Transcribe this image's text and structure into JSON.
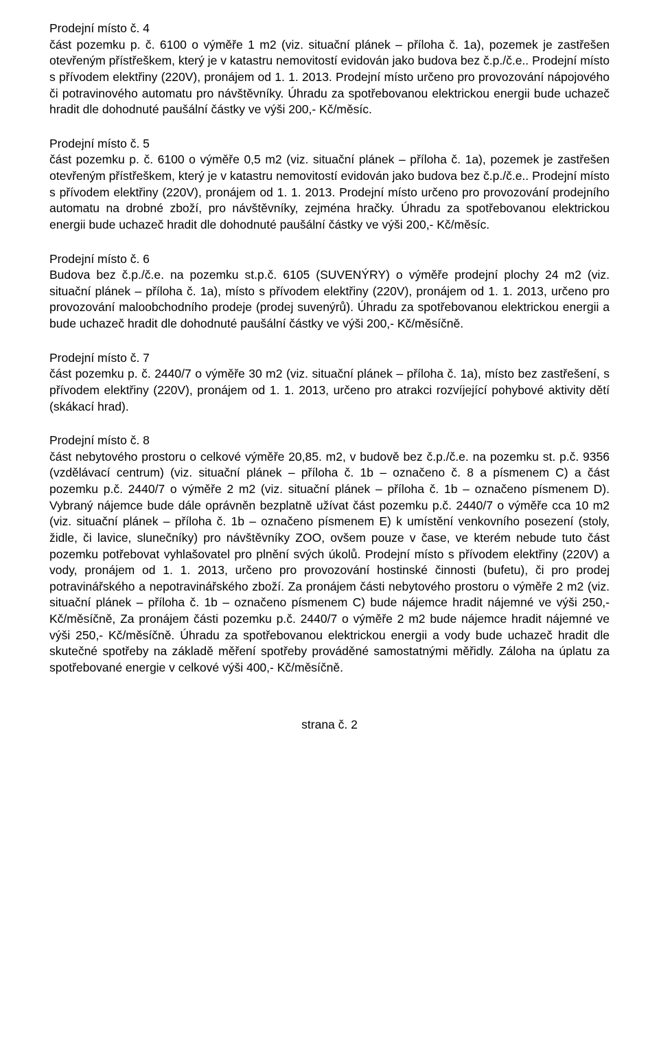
{
  "sections": [
    {
      "heading": "Prodejní místo č. 4",
      "body": "část pozemku p. č. 6100 o výměře 1 m2 (viz. situační plánek – příloha č. 1a), pozemek je zastřešen otevřeným přístřeškem, který je v katastru nemovitostí evidován jako budova bez č.p./č.e.. Prodejní místo s přívodem elektřiny (220V), pronájem od 1. 1. 2013. Prodejní místo určeno pro provozování nápojového či potravinového automatu pro návštěvníky. Úhradu za spotřebovanou elektrickou energii bude uchazeč hradit dle dohodnuté paušální částky ve výši 200,- Kč/měsíc."
    },
    {
      "heading": "Prodejní místo č. 5",
      "body": "část pozemku p. č. 6100 o výměře 0,5 m2 (viz. situační plánek – příloha č. 1a), pozemek je zastřešen otevřeným přístřeškem, který je v katastru nemovitostí evidován jako budova bez č.p./č.e.. Prodejní místo s přívodem elektřiny (220V), pronájem od 1. 1. 2013. Prodejní místo určeno pro provozování prodejního automatu na drobné zboží, pro návštěvníky, zejména hračky. Úhradu za spotřebovanou elektrickou energii bude uchazeč hradit dle dohodnuté paušální částky ve výši 200,- Kč/měsíc."
    },
    {
      "heading": "Prodejní místo č. 6",
      "body": "Budova bez č.p./č.e. na pozemku st.p.č. 6105 (SUVENÝRY) o výměře prodejní plochy 24 m2 (viz. situační plánek – příloha č. 1a), místo s přívodem elektřiny (220V), pronájem od 1. 1. 2013, určeno pro provozování maloobchodního prodeje (prodej suvenýrů). Úhradu za spotřebovanou elektrickou energii a bude uchazeč hradit dle dohodnuté paušální částky ve výši 200,- Kč/měsíčně."
    },
    {
      "heading": "Prodejní místo č. 7",
      "body": "část pozemku p. č. 2440/7 o výměře 30 m2 (viz. situační plánek – příloha č. 1a), místo bez zastřešení, s přívodem elektřiny (220V), pronájem od 1. 1. 2013, určeno pro atrakci rozvíjející pohybové aktivity dětí (skákací hrad)."
    },
    {
      "heading": "Prodejní místo č. 8",
      "body": "část nebytového prostoru o celkové výměře 20,85. m2, v budově bez č.p./č.e. na pozemku st. p.č. 9356 (vzdělávací centrum) (viz. situační plánek – příloha č. 1b – označeno č. 8 a písmenem C) a část pozemku p.č. 2440/7 o výměře 2 m2 (viz. situační plánek – příloha č. 1b – označeno písmenem D). Vybraný nájemce bude dále oprávněn bezplatně užívat část pozemku p.č. 2440/7 o výměře cca 10 m2 (viz. situační plánek – příloha č. 1b – označeno písmenem E) k umístění venkovního posezení (stoly, židle, či lavice, slunečníky) pro návštěvníky ZOO, ovšem pouze v čase, ve kterém nebude tuto část pozemku potřebovat vyhlašovatel pro plnění svých úkolů. Prodejní místo s přívodem elektřiny (220V) a vody, pronájem od 1. 1. 2013, určeno pro provozování hostinské činnosti (bufetu), či pro prodej potravinářského a nepotravinářského zboží. Za pronájem části nebytového prostoru o výměře 2 m2 (viz. situační plánek – příloha č. 1b – označeno písmenem C) bude nájemce hradit nájemné ve výši 250,- Kč/měsíčně, Za pronájem části pozemku p.č. 2440/7 o výměře 2 m2 bude nájemce hradit nájemné ve výši 250,- Kč/měsíčně. Úhradu za spotřebovanou elektrickou energii a vody bude uchazeč hradit dle skutečné spotřeby na základě měření spotřeby prováděné samostatnými měřidly. Záloha na úplatu za spotřebované energie v celkové výši 400,- Kč/měsíčně."
    }
  ],
  "footer": "strana č. 2"
}
